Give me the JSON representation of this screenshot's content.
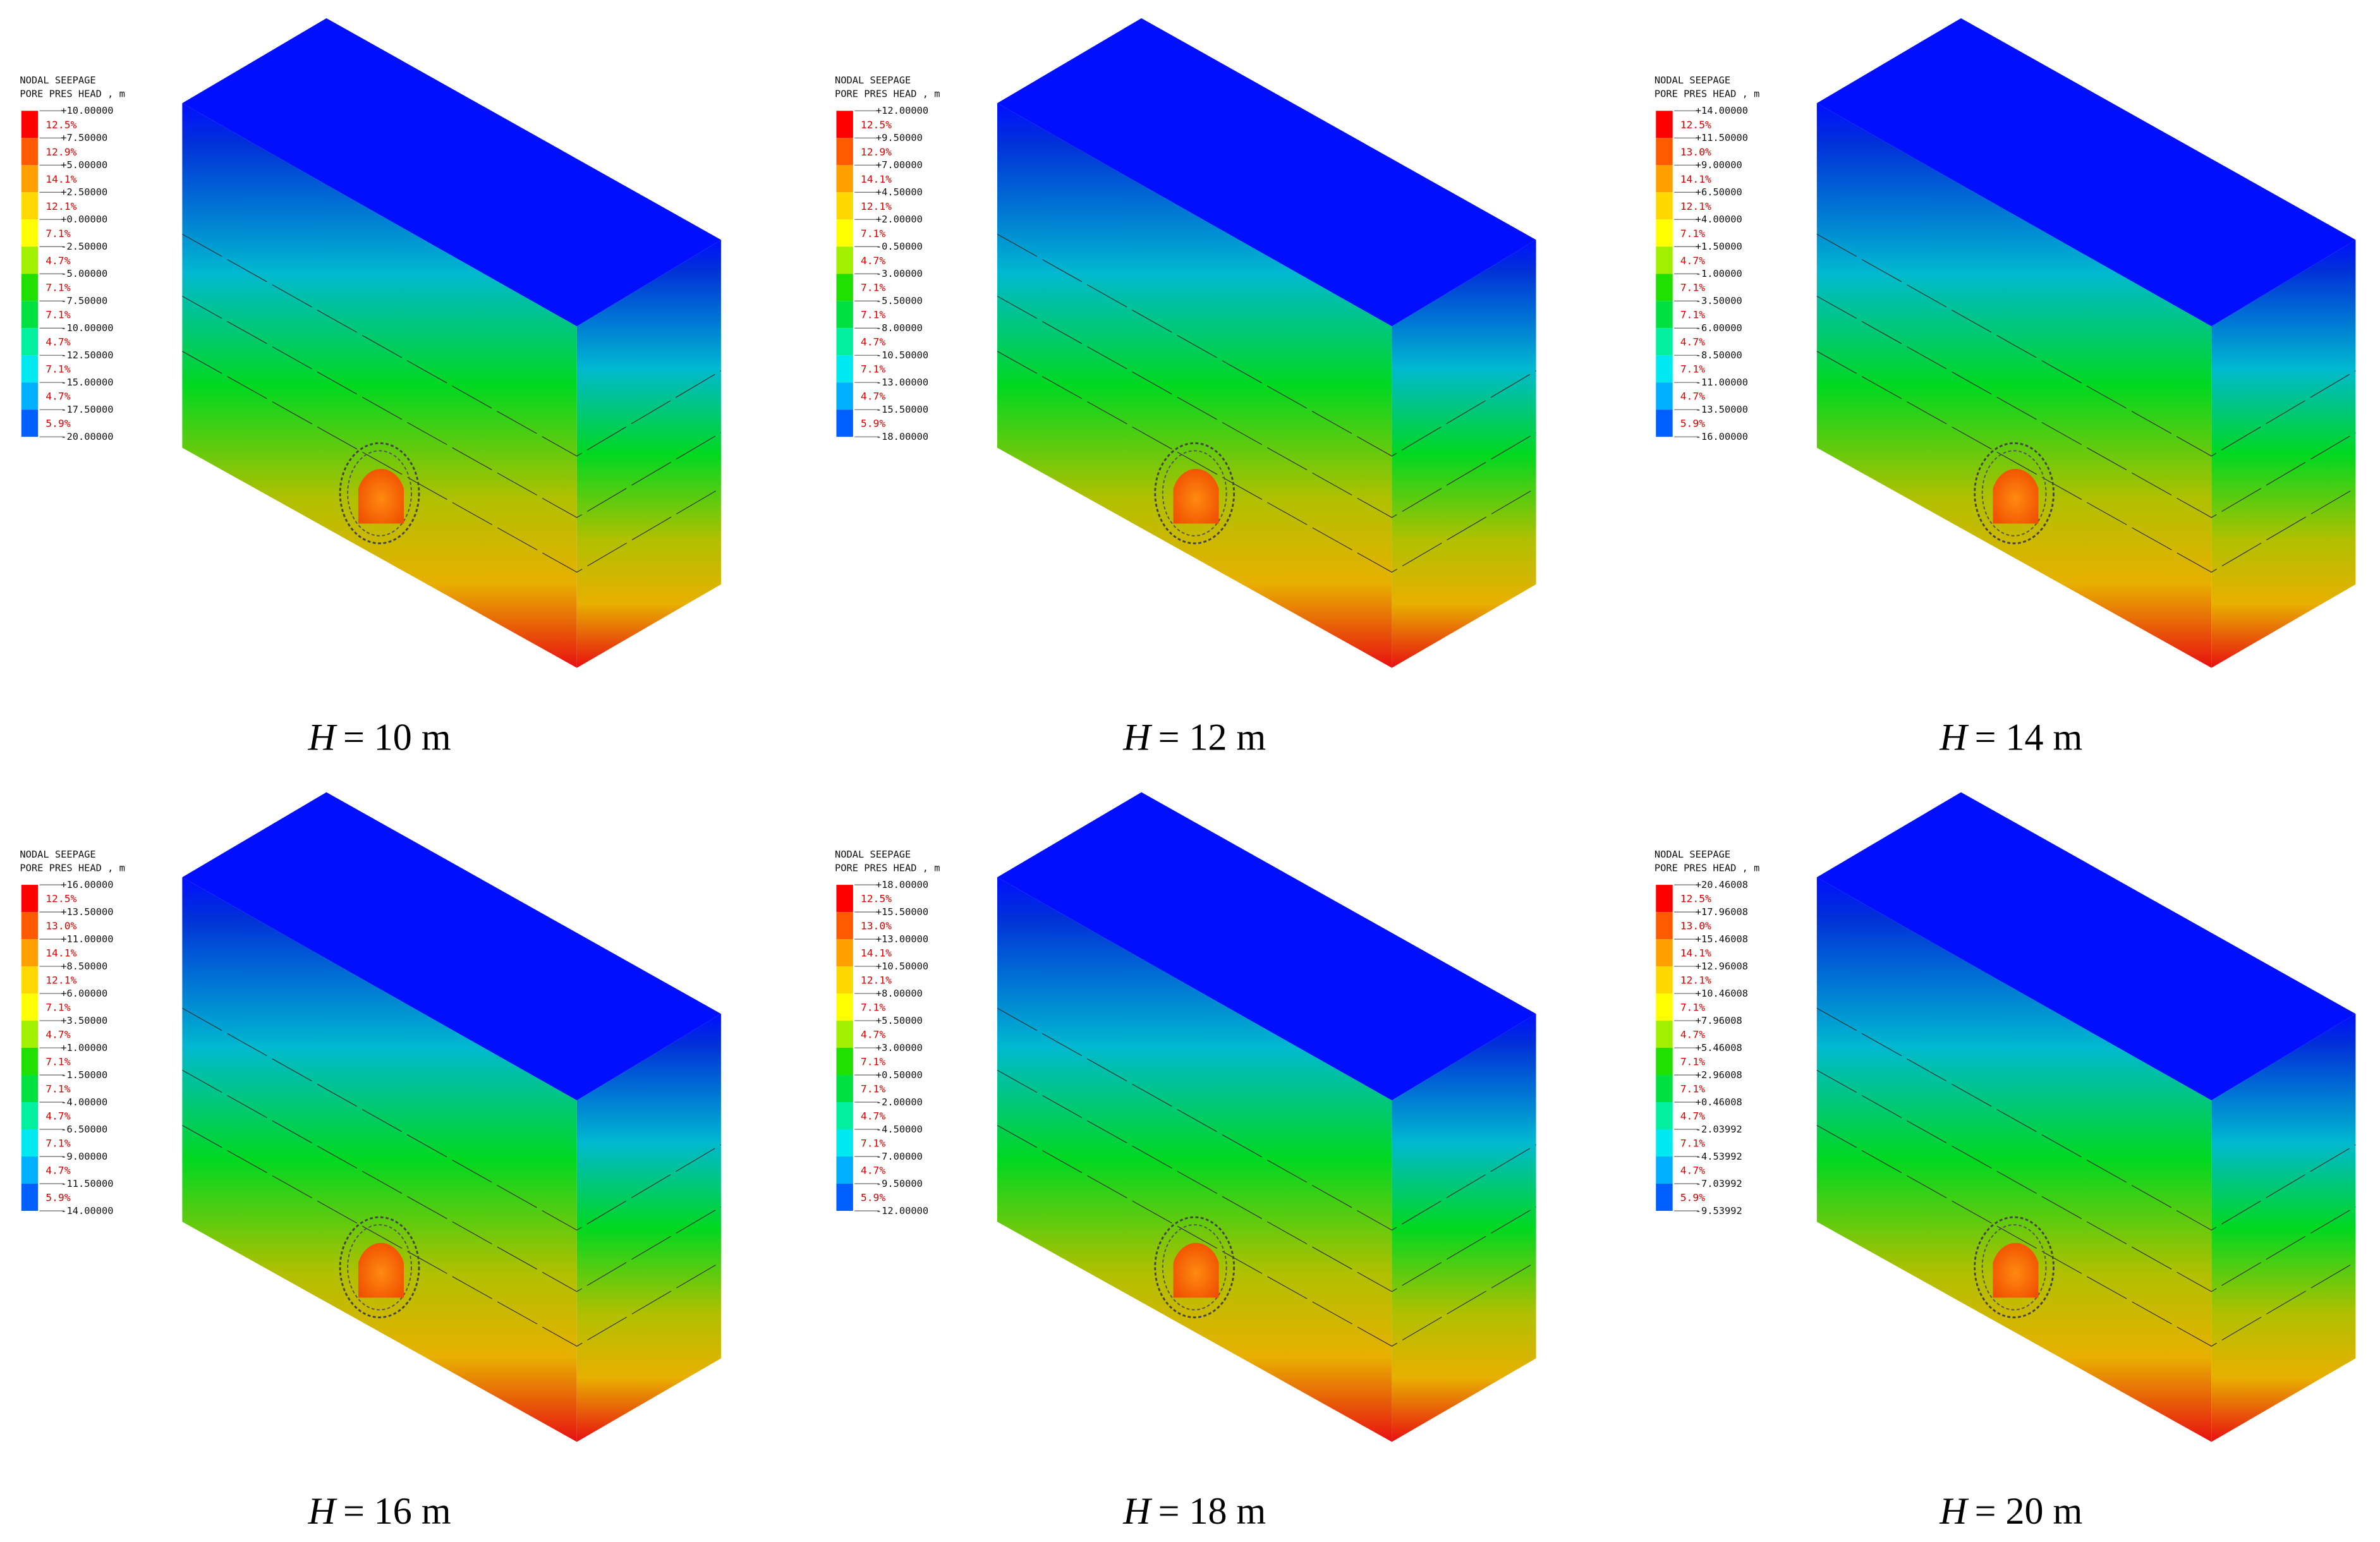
{
  "panels": [
    {
      "legend": {
        "title": [
          "NODAL SEEPAGE",
          "PORE PRES HEAD , m"
        ],
        "levels": [
          "+10.00000",
          "+7.50000",
          "+5.00000",
          "+2.50000",
          "+0.00000",
          "-2.50000",
          "-5.00000",
          "-7.50000",
          "-10.00000",
          "-12.50000",
          "-15.00000",
          "-17.50000",
          "-20.00000"
        ],
        "percentages": [
          "12.5%",
          "12.9%",
          "14.1%",
          "12.1%",
          "7.1%",
          "4.7%",
          "7.1%",
          "7.1%",
          "4.7%",
          "7.1%",
          "4.7%",
          "5.9%"
        ]
      },
      "caption": {
        "variable": "H",
        "text": "= 10 m"
      }
    },
    {
      "legend": {
        "title": [
          "NODAL SEEPAGE",
          "PORE PRES HEAD , m"
        ],
        "levels": [
          "+12.00000",
          "+9.50000",
          "+7.00000",
          "+4.50000",
          "+2.00000",
          "-0.50000",
          "-3.00000",
          "-5.50000",
          "-8.00000",
          "-10.50000",
          "-13.00000",
          "-15.50000",
          "-18.00000"
        ],
        "percentages": [
          "12.5%",
          "12.9%",
          "14.1%",
          "12.1%",
          "7.1%",
          "4.7%",
          "7.1%",
          "7.1%",
          "4.7%",
          "7.1%",
          "4.7%",
          "5.9%"
        ]
      },
      "caption": {
        "variable": "H",
        "text": "= 12 m"
      }
    },
    {
      "legend": {
        "title": [
          "NODAL SEEPAGE",
          "PORE PRES HEAD , m"
        ],
        "levels": [
          "+14.00000",
          "+11.50000",
          "+9.00000",
          "+6.50000",
          "+4.00000",
          "+1.50000",
          "-1.00000",
          "-3.50000",
          "-6.00000",
          "-8.50000",
          "-11.00000",
          "-13.50000",
          "-16.00000"
        ],
        "percentages": [
          "12.5%",
          "13.0%",
          "14.1%",
          "12.1%",
          "7.1%",
          "4.7%",
          "7.1%",
          "7.1%",
          "4.7%",
          "7.1%",
          "4.7%",
          "5.9%"
        ]
      },
      "caption": {
        "variable": "H",
        "text": "= 14 m"
      }
    },
    {
      "legend": {
        "title": [
          "NODAL SEEPAGE",
          "PORE PRES HEAD , m"
        ],
        "levels": [
          "+16.00000",
          "+13.50000",
          "+11.00000",
          "+8.50000",
          "+6.00000",
          "+3.50000",
          "+1.00000",
          "-1.50000",
          "-4.00000",
          "-6.50000",
          "-9.00000",
          "-11.50000",
          "-14.00000"
        ],
        "percentages": [
          "12.5%",
          "13.0%",
          "14.1%",
          "12.1%",
          "7.1%",
          "4.7%",
          "7.1%",
          "7.1%",
          "4.7%",
          "7.1%",
          "4.7%",
          "5.9%"
        ]
      },
      "caption": {
        "variable": "H",
        "text": "= 16 m"
      }
    },
    {
      "legend": {
        "title": [
          "NODAL SEEPAGE",
          "PORE PRES HEAD , m"
        ],
        "levels": [
          "+18.00000",
          "+15.50000",
          "+13.00000",
          "+10.50000",
          "+8.00000",
          "+5.50000",
          "+3.00000",
          "+0.50000",
          "-2.00000",
          "-4.50000",
          "-7.00000",
          "-9.50000",
          "-12.00000"
        ],
        "percentages": [
          "12.5%",
          "13.0%",
          "14.1%",
          "12.1%",
          "7.1%",
          "4.7%",
          "7.1%",
          "7.1%",
          "4.7%",
          "7.1%",
          "4.7%",
          "5.9%"
        ]
      },
      "caption": {
        "variable": "H",
        "text": "= 18 m"
      }
    },
    {
      "legend": {
        "title": [
          "NODAL SEEPAGE",
          "PORE PRES HEAD , m"
        ],
        "levels": [
          "+20.46008",
          "+17.96008",
          "+15.46008",
          "+12.96008",
          "+10.46008",
          "+7.96008",
          "+5.46008",
          "+2.96008",
          "+0.46008",
          "-2.03992",
          "-4.53992",
          "-7.03992",
          "-9.53992"
        ],
        "percentages": [
          "12.5%",
          "13.0%",
          "14.1%",
          "12.1%",
          "7.1%",
          "4.7%",
          "7.1%",
          "7.1%",
          "4.7%",
          "7.1%",
          "4.7%",
          "5.9%"
        ]
      },
      "caption": {
        "variable": "H",
        "text": "= 20 m"
      }
    }
  ]
}
